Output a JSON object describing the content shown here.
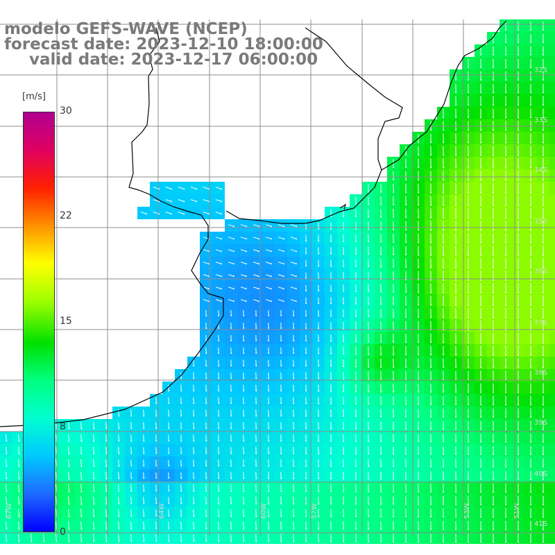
{
  "title": {
    "line1": "modelo GEFS-WAVE (NCEP)",
    "line2": "forecast date: 2023-12-10 18:00:00",
    "line3": "valid date: 2023-12-17 06:00:00"
  },
  "colorbar": {
    "unit": "[m/s]",
    "ticks": [
      "30",
      "22",
      "15",
      "8",
      "0"
    ],
    "tick_values": [
      30,
      22,
      15,
      8,
      0
    ],
    "colors": [
      "#0000ff",
      "#1e6bff",
      "#00c8ff",
      "#00ffd0",
      "#00ff80",
      "#00e000",
      "#a0ff00",
      "#ffff00",
      "#ff9000",
      "#ff2000",
      "#e00060",
      "#b00090"
    ]
  },
  "map": {
    "field": "wind speed and direction",
    "land_color": "#ffffff",
    "grid_color": "#8c8c8c",
    "coast_color": "#000000",
    "lon_labels": [
      "67W",
      "64W",
      "60W",
      "57W",
      "53W",
      "51W"
    ],
    "lat_labels": [
      "32S",
      "33S",
      "34S",
      "35S",
      "36S",
      "37S",
      "38S",
      "39S",
      "40S",
      "41S"
    ]
  }
}
